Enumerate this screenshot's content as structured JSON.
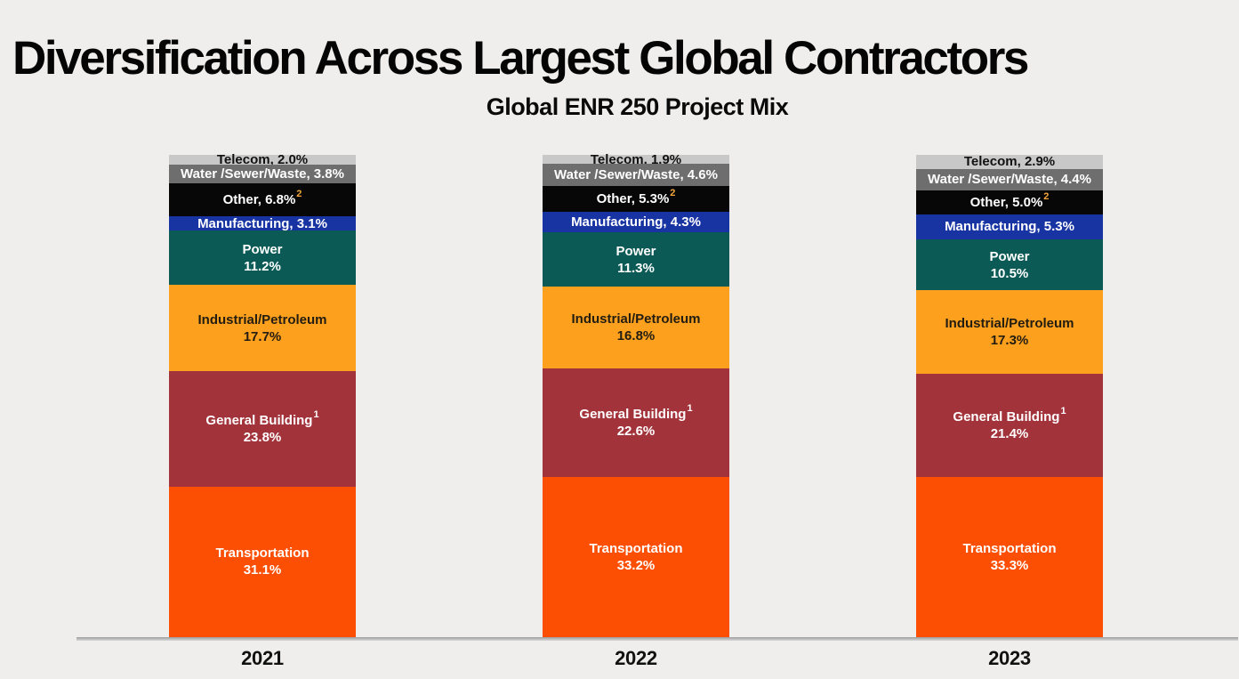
{
  "page": {
    "title": "Diversification Across Largest Global Contractors",
    "subtitle": "Global ENR 250 Project Mix",
    "background_color": "#efeeec",
    "title_color": "#050505"
  },
  "chart_data": {
    "type": "bar",
    "stacked": true,
    "orientation": "vertical",
    "unit": "%",
    "title": "Global ENR 250 Project Mix",
    "categories": [
      "2021",
      "2022",
      "2023"
    ],
    "series_order": "top-to-bottom",
    "axis": {
      "x_baseline_visible": true,
      "y_axis_visible": false,
      "gridlines": false,
      "legend": "none (labels inside segments)"
    },
    "series": [
      {
        "name": "Telecom",
        "values": [
          2.0,
          1.9,
          2.9
        ],
        "color": "#c8c8c8",
        "text_color": "#111111",
        "label_style": "inline"
      },
      {
        "name": "Water /Sewer/Waste",
        "values": [
          3.8,
          4.6,
          4.4
        ],
        "color": "#6e6e6e",
        "text_color": "#ffffff",
        "label_style": "inline"
      },
      {
        "name": "Other",
        "values": [
          6.8,
          5.3,
          5.0
        ],
        "color": "#070707",
        "text_color": "#ffffff",
        "label_style": "inline",
        "footnote_marker": "2",
        "footnote_marker_color": "#f5a63c",
        "footnote_marker_position": "after-value"
      },
      {
        "name": "Manufacturing",
        "values": [
          3.1,
          4.3,
          5.3
        ],
        "color": "#1834a2",
        "text_color": "#ffffff",
        "label_style": "inline"
      },
      {
        "name": "Power",
        "values": [
          11.2,
          11.3,
          10.5
        ],
        "color": "#0b5a56",
        "text_color": "#ffffff",
        "label_style": "two-line"
      },
      {
        "name": "Industrial/Petroleum",
        "values": [
          17.7,
          16.8,
          17.3
        ],
        "color": "#fca01e",
        "text_color": "#231c10",
        "label_style": "two-line"
      },
      {
        "name": "General Building",
        "values": [
          23.8,
          22.6,
          21.4
        ],
        "color": "#a3333a",
        "text_color": "#ffffff",
        "label_style": "two-line",
        "footnote_marker": "1",
        "footnote_marker_color": "#ffffff",
        "footnote_marker_position": "after-name"
      },
      {
        "name": "Transportation",
        "values": [
          31.1,
          33.2,
          33.3
        ],
        "color": "#fc4f04",
        "text_color": "#ffffff",
        "label_style": "two-line"
      }
    ]
  }
}
